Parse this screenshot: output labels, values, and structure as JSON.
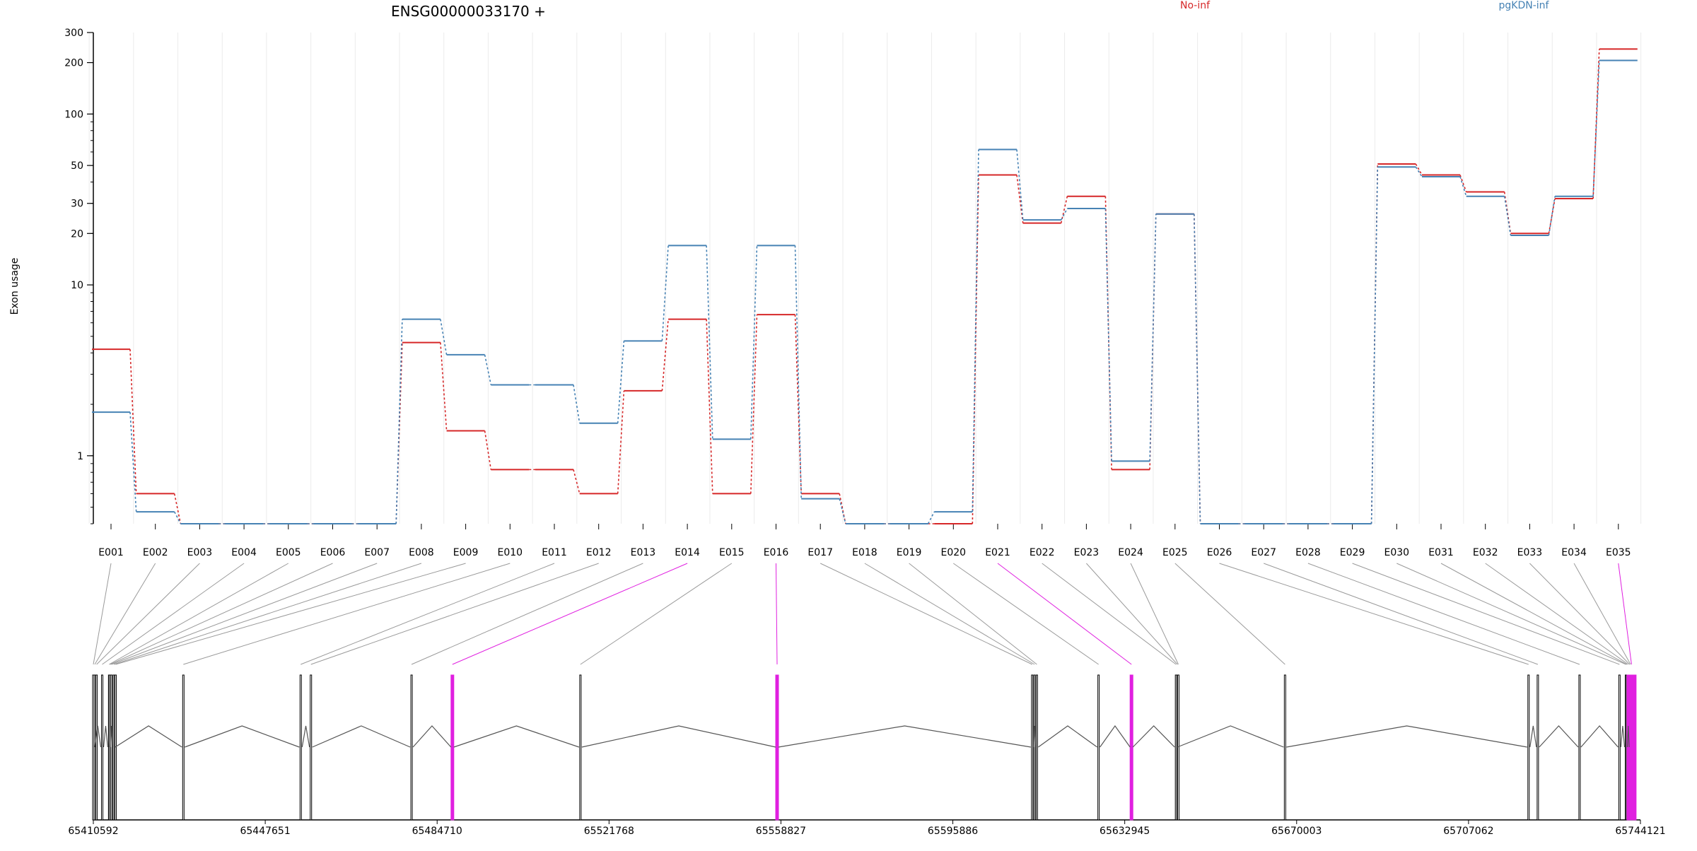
{
  "chart_data": {
    "type": "line",
    "title": "ENSG00000033170 +",
    "ylabel": "Exon usage",
    "y_scale": "log",
    "ylim": [
      0.4,
      300
    ],
    "yticks": [
      1,
      10,
      20,
      30,
      50,
      100,
      200,
      300
    ],
    "categories": [
      "E001",
      "E002",
      "E003",
      "E004",
      "E005",
      "E006",
      "E007",
      "E008",
      "E009",
      "E010",
      "E011",
      "E012",
      "E013",
      "E014",
      "E015",
      "E016",
      "E017",
      "E018",
      "E019",
      "E020",
      "E021",
      "E022",
      "E023",
      "E024",
      "E025",
      "E026",
      "E027",
      "E028",
      "E029",
      "E030",
      "E031",
      "E032",
      "E033",
      "E034",
      "E035"
    ],
    "series": [
      {
        "name": "No-inf",
        "color": "#d62728",
        "values": [
          4.2,
          0.6,
          0.4,
          0.4,
          0.4,
          0.4,
          0.4,
          4.6,
          1.4,
          0.83,
          0.83,
          0.6,
          2.4,
          6.3,
          0.6,
          6.7,
          0.6,
          0.4,
          0.4,
          0.4,
          44,
          23,
          33,
          0.83,
          26,
          0.4,
          0.4,
          0.4,
          0.4,
          51,
          44,
          35,
          20,
          32,
          240
        ]
      },
      {
        "name": "pgKDN-inf",
        "color": "#4682b4",
        "values": [
          1.8,
          0.47,
          0.4,
          0.4,
          0.4,
          0.4,
          0.4,
          6.3,
          3.9,
          2.6,
          2.6,
          1.55,
          4.7,
          17,
          1.25,
          17,
          0.56,
          0.4,
          0.4,
          0.47,
          62,
          24,
          28,
          0.93,
          26,
          0.4,
          0.4,
          0.4,
          0.4,
          49,
          43,
          33,
          19.5,
          33,
          206
        ]
      }
    ],
    "genome": {
      "ticks": [
        "65410592",
        "65447651",
        "65484710",
        "65521768",
        "65558827",
        "65595886",
        "65632945",
        "65670003",
        "65707062",
        "65744121"
      ],
      "range": [
        65410592,
        65744121
      ],
      "exon_starts": [
        65410592,
        65410900,
        65411300,
        65412500,
        65414000,
        65414200,
        65414500,
        65415000,
        65415400,
        65430000,
        65455300,
        65457500,
        65479200,
        65488000,
        65515600,
        65558000,
        65613000,
        65613500,
        65614000,
        65627300,
        65634400,
        65644000,
        65644300,
        65644500,
        65667500,
        65720000,
        65722000,
        65731000,
        65739600,
        65741000,
        65741200,
        65741500,
        65741800,
        65742000,
        65742200
      ],
      "highlighted_exons": [
        "E014",
        "E016",
        "E021",
        "E035"
      ],
      "highlight_color": "#e020e0"
    }
  }
}
